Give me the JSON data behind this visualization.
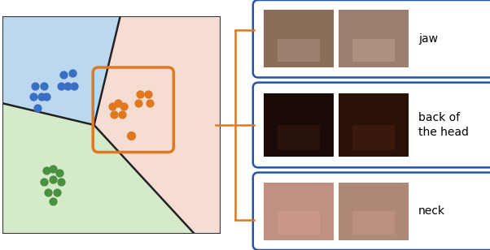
{
  "fig_width": 6.02,
  "fig_height": 3.08,
  "dpi": 100,
  "background_color": "#ffffff",
  "blue_color": "#3a6fc4",
  "orange_color": "#e07820",
  "green_color": "#4a9040",
  "blue_region_color": "#bcd8ee",
  "orange_region_color": "#f5ddd4",
  "green_region_color": "#d4eac8",
  "panel_border_color": "#2255aa",
  "panel_border_lw": 1.8,
  "bracket_color": "#e07820",
  "bracket_lw": 1.8,
  "label_fontsize": 10,
  "label_color": "#000000",
  "panel_labels": [
    "jaw",
    "back of\nthe head",
    "neck"
  ]
}
